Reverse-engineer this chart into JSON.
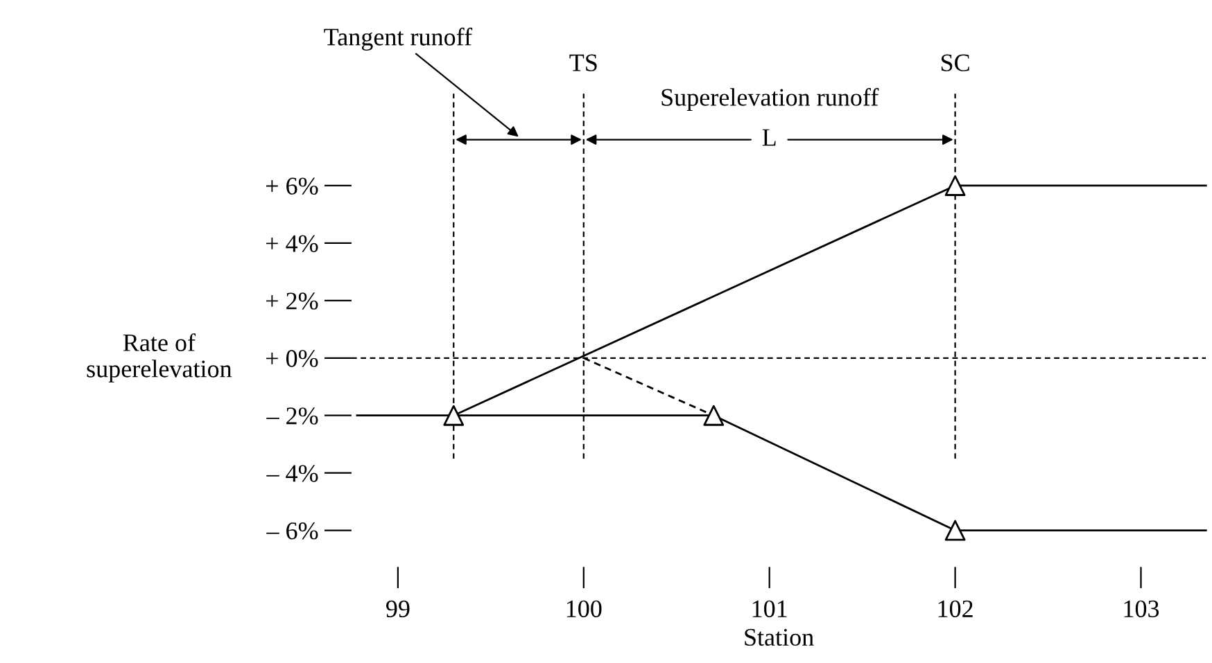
{
  "chart_data": {
    "type": "line",
    "xlabel": "Station",
    "ylabel": "Rate of\nsuperelevation",
    "xlim": [
      98.75,
      103.35
    ],
    "xticks": [
      99,
      100,
      101,
      102,
      103
    ],
    "ylim": [
      -6,
      6
    ],
    "yticks": [
      {
        "value": 6,
        "label": "+ 6%"
      },
      {
        "value": 4,
        "label": "+ 4%"
      },
      {
        "value": 2,
        "label": "+ 2%"
      },
      {
        "value": 0,
        "label": "+ 0%"
      },
      {
        "value": -2,
        "label": "– 2%"
      },
      {
        "value": -4,
        "label": "– 4%"
      },
      {
        "value": -6,
        "label": "– 6%"
      }
    ],
    "grid": false,
    "legend": false,
    "marker": "none",
    "line_style": "solid",
    "series": [
      {
        "color": "#000000",
        "x": [
          99.3,
          102,
          103.35
        ],
        "values": [
          -2,
          6,
          6
        ]
      },
      {
        "color": "#000000",
        "x": [
          98.78,
          100.7,
          102,
          103.35
        ],
        "values": [
          -2,
          -2,
          -6,
          -6
        ]
      },
      {
        "color": "#000000",
        "x": [
          100,
          100.7
        ],
        "values": [
          0,
          -2
        ],
        "line_style": "dashed"
      },
      {
        "type": "scatter",
        "color": "#000000",
        "marker": "triangle",
        "x": [
          99.3,
          100.7,
          102,
          102
        ],
        "values": [
          -2,
          -2,
          6,
          -6
        ]
      }
    ],
    "ref_lines": [
      {
        "axis": "x",
        "value": 99.3,
        "label": null,
        "line_style": "dashed"
      },
      {
        "axis": "x",
        "value": 100,
        "label": "TS",
        "line_style": "dashed"
      },
      {
        "axis": "x",
        "value": 102,
        "label": "SC",
        "line_style": "dashed"
      },
      {
        "axis": "y",
        "value": 0,
        "label": null,
        "line_style": "dashed"
      }
    ],
    "annotations": [
      "Tangent runoff",
      "Superelevation runoff",
      "L"
    ]
  }
}
